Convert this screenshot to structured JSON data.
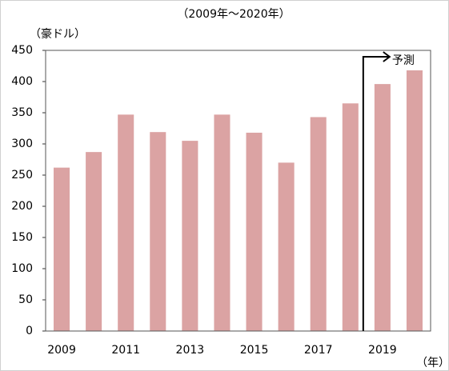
{
  "chart_data": {
    "type": "bar",
    "title": "（2009年～2020年）",
    "y_label": "（豪ドル）",
    "x_label": "（年）",
    "annotation": "予測",
    "categories": [
      "2009",
      null,
      "2011",
      null,
      "2013",
      null,
      "2015",
      null,
      "2017",
      null,
      "2019",
      null
    ],
    "values": [
      262,
      287,
      347,
      319,
      305,
      347,
      318,
      270,
      343,
      365,
      396,
      418
    ],
    "color": "#dba3a3",
    "ylim": [
      0,
      450
    ],
    "yticks": [
      0,
      50,
      100,
      150,
      200,
      250,
      300,
      350,
      400,
      450
    ],
    "grid": false
  }
}
